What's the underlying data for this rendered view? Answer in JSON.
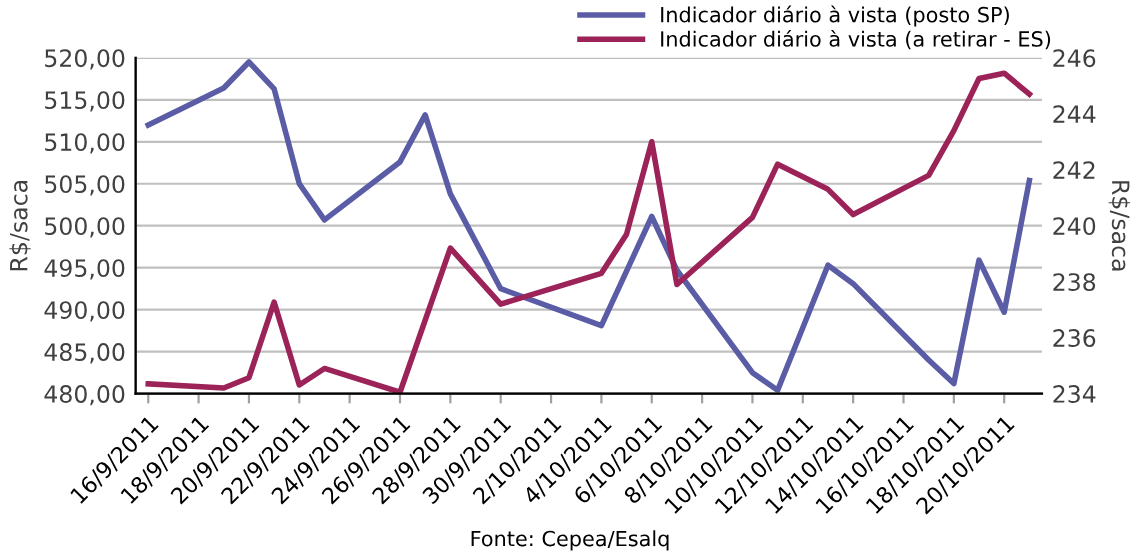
{
  "chart_data": {
    "type": "line",
    "annotations": [
      "Fonte: Cepea/Esalq"
    ],
    "ylabel": "R$/saca",
    "y2label": "R$/saca",
    "series": [
      {
        "name": "Indicador diário à vista (posto SP)",
        "color": "#5a5ca6",
        "x": [
          "2011-09-16",
          "2011-09-19",
          "2011-09-20",
          "2011-09-21",
          "2011-09-22",
          "2011-09-23",
          "2011-09-26",
          "2011-09-27",
          "2011-09-28",
          "2011-09-30",
          "2011-10-04",
          "2011-10-06",
          "2011-10-07",
          "2011-10-10",
          "2011-10-11",
          "2011-10-13",
          "2011-10-14",
          "2011-10-17",
          "2011-10-18",
          "2011-10-19",
          "2011-10-20",
          "2011-10-21"
        ],
        "values": [
          512.0,
          516.4,
          519.5,
          516.3,
          505.0,
          500.7,
          507.6,
          513.2,
          503.8,
          492.5,
          488.1,
          501.1,
          494.7,
          482.5,
          480.4,
          495.3,
          493.1,
          484.0,
          481.2,
          495.9,
          489.7,
          505.4
        ]
      },
      {
        "name": "Indicador diário à vista (a retirar - ES)",
        "color": "#9b2358",
        "axis": "y2",
        "x": [
          "2011-09-16",
          "2011-09-19",
          "2011-09-20",
          "2011-09-21",
          "2011-09-22",
          "2011-09-23",
          "2011-09-26",
          "2011-09-28",
          "2011-09-30",
          "2011-10-04",
          "2011-10-05",
          "2011-10-06",
          "2011-10-07",
          "2011-10-10",
          "2011-10-11",
          "2011-10-13",
          "2011-10-14",
          "2011-10-17",
          "2011-10-18",
          "2011-10-19",
          "2011-10-20",
          "2011-10-21"
        ],
        "values": [
          234.35,
          234.2,
          234.57,
          237.27,
          234.31,
          234.9,
          234.05,
          239.2,
          237.2,
          238.3,
          239.7,
          243.0,
          237.9,
          240.3,
          242.2,
          241.3,
          240.4,
          241.8,
          243.4,
          245.26,
          245.45,
          244.7
        ]
      }
    ],
    "xlim": [
      "2011-09-15T12:00",
      "2011-10-21T12:00"
    ],
    "xticks": [
      {
        "value": "2011-09-16",
        "label": "16/9/2011"
      },
      {
        "value": "2011-09-18",
        "label": "18/9/2011"
      },
      {
        "value": "2011-09-20",
        "label": "20/9/2011"
      },
      {
        "value": "2011-09-22",
        "label": "22/9/2011"
      },
      {
        "value": "2011-09-24",
        "label": "24/9/2011"
      },
      {
        "value": "2011-09-26",
        "label": "26/9/2011"
      },
      {
        "value": "2011-09-28",
        "label": "28/9/2011"
      },
      {
        "value": "2011-09-30",
        "label": "30/9/2011"
      },
      {
        "value": "2011-10-02",
        "label": "2/10/2011"
      },
      {
        "value": "2011-10-04",
        "label": "4/10/2011"
      },
      {
        "value": "2011-10-06",
        "label": "6/10/2011"
      },
      {
        "value": "2011-10-08",
        "label": "8/10/2011"
      },
      {
        "value": "2011-10-10",
        "label": "10/10/2011"
      },
      {
        "value": "2011-10-12",
        "label": "12/10/2011"
      },
      {
        "value": "2011-10-14",
        "label": "14/10/2011"
      },
      {
        "value": "2011-10-16",
        "label": "16/10/2011"
      },
      {
        "value": "2011-10-18",
        "label": "18/10/2011"
      },
      {
        "value": "2011-10-20",
        "label": "20/10/2011"
      }
    ],
    "ylim": [
      480,
      520
    ],
    "yticks": [
      {
        "value": 480,
        "label": "480,00"
      },
      {
        "value": 485,
        "label": "485,00"
      },
      {
        "value": 490,
        "label": "490,00"
      },
      {
        "value": 495,
        "label": "495,00"
      },
      {
        "value": 500,
        "label": "500,00"
      },
      {
        "value": 505,
        "label": "505,00"
      },
      {
        "value": 510,
        "label": "510,00"
      },
      {
        "value": 515,
        "label": "515,00"
      },
      {
        "value": 520,
        "label": "520,00"
      }
    ],
    "y2lim": [
      234,
      246
    ],
    "y2ticks": [
      234,
      236,
      238,
      240,
      242,
      244,
      246
    ],
    "grid": "y",
    "legend": "top right",
    "marker": "none",
    "line_style": "solid"
  }
}
